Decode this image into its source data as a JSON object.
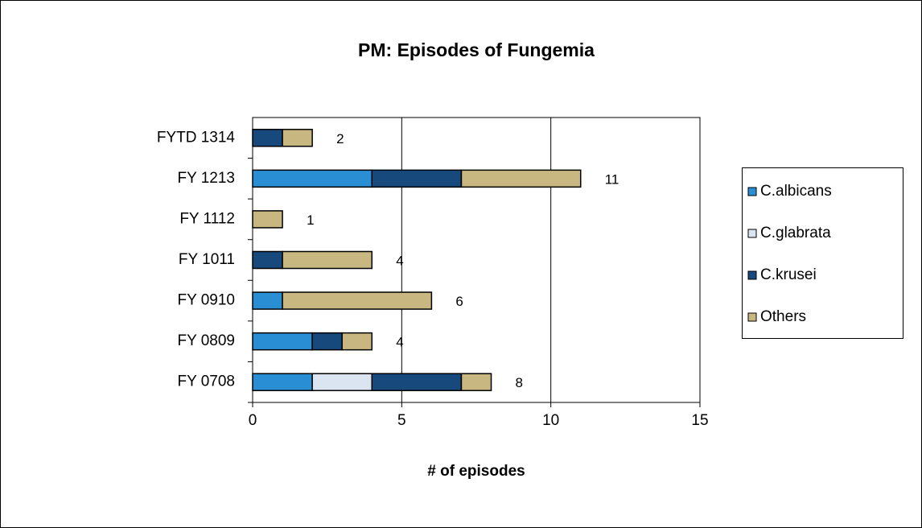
{
  "chart_data": {
    "type": "stacked_barh",
    "title": "PM: Episodes of Fungemia",
    "x_label": "# of episodes",
    "categories": [
      "FY 0708",
      "FY 0809",
      "FY 0910",
      "FY 1011",
      "FY 1112",
      "FY 1213",
      "FYTD 1314"
    ],
    "series": [
      {
        "name": "C.albicans",
        "color": "#2a8ed4",
        "values": [
          2,
          2,
          1,
          0,
          0,
          4,
          0
        ]
      },
      {
        "name": "C.glabrata",
        "color": "#dbe5f1",
        "values": [
          2,
          0,
          0,
          0,
          0,
          0,
          0
        ]
      },
      {
        "name": "C.krusei",
        "color": "#17497d",
        "values": [
          3,
          1,
          0,
          1,
          0,
          3,
          1
        ]
      },
      {
        "name": "Others",
        "color": "#c9b781",
        "values": [
          1,
          1,
          5,
          3,
          1,
          4,
          1
        ]
      }
    ],
    "totals": [
      8,
      4,
      6,
      4,
      1,
      11,
      2
    ],
    "xlim": [
      0,
      15
    ],
    "xticks": [
      0,
      5,
      10,
      15
    ],
    "grid": true,
    "legend": "right"
  }
}
